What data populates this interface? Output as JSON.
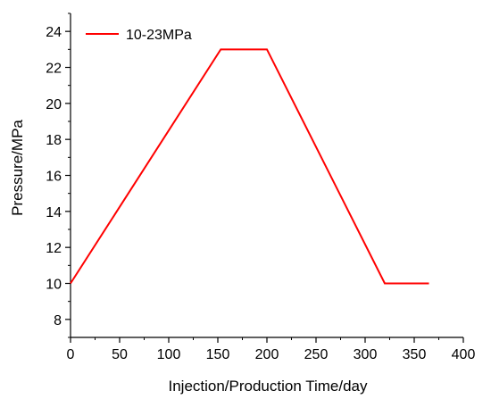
{
  "chart_data": {
    "type": "line",
    "title": "",
    "xlabel": "Injection/Production Time/day",
    "ylabel": "Pressure/MPa",
    "xlim": [
      0,
      400
    ],
    "ylim": [
      7,
      25
    ],
    "x_ticks": [
      0,
      50,
      100,
      150,
      200,
      250,
      300,
      350,
      400
    ],
    "y_ticks": [
      8,
      10,
      12,
      14,
      16,
      18,
      20,
      22,
      24
    ],
    "x_tick_labels": [
      "0",
      "50",
      "100",
      "150",
      "200",
      "250",
      "300",
      "350",
      "400"
    ],
    "y_tick_labels": [
      "8",
      "10",
      "12",
      "14",
      "16",
      "18",
      "20",
      "22",
      "24"
    ],
    "grid": false,
    "legend_position": "top-left",
    "series": [
      {
        "name": "10-23MPa",
        "color": "#ff0000",
        "x": [
          0,
          153,
          200,
          320,
          365
        ],
        "y": [
          10,
          23,
          23,
          10,
          10
        ]
      }
    ]
  }
}
